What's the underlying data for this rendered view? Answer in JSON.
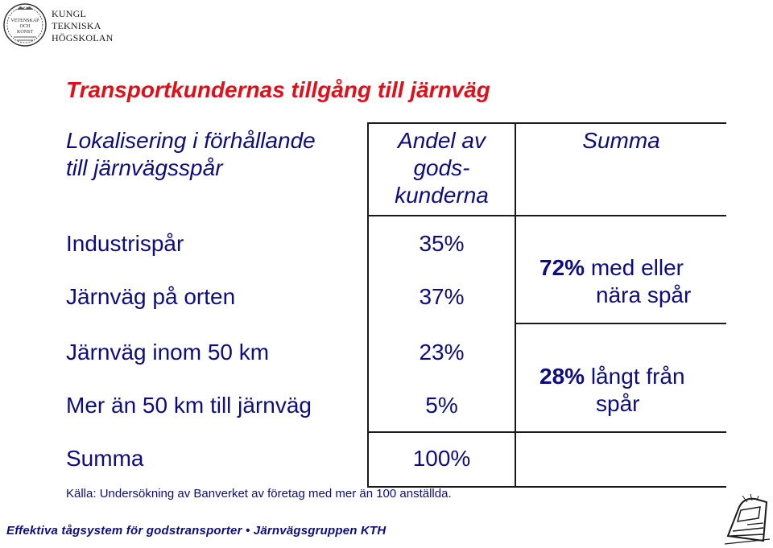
{
  "logo": {
    "seal_lines": [
      "VETENSKAP",
      "OCH",
      "KONST"
    ],
    "name_lines": [
      "KUNGL",
      "TEKNISKA",
      "HÖGSKOLAN"
    ]
  },
  "title": "Transportkundernas tillgång till järnväg",
  "table": {
    "headers": {
      "col1": [
        "Lokalisering i förhållande",
        "till järnvägsspår"
      ],
      "col2": [
        "Andel av",
        "gods-",
        "kunderna"
      ],
      "col3": "Summa"
    },
    "rows": [
      {
        "label": "Industrispår",
        "share": "35%"
      },
      {
        "label": "Järnväg på orten",
        "share": "37%"
      },
      {
        "label": "Järnväg inom 50 km",
        "share": "23%"
      },
      {
        "label": "Mer än 50 km till järnväg",
        "share": "5%"
      }
    ],
    "groups": [
      {
        "percent": "72%",
        "text1": "med eller",
        "text2": "nära spår"
      },
      {
        "percent": "28%",
        "text1": "långt från",
        "text2": "spår"
      }
    ],
    "total": {
      "label": "Summa",
      "share": "100%"
    }
  },
  "source": "Källa: Undersökning av Banverket av företag med mer än 100 anställda.",
  "footer": "Effektiva tågsystem för godstransporter • Järnvägsgruppen  KTH",
  "colors": {
    "title": "#e0101a",
    "text": "#0d0d80",
    "lines": "#1a1a1a"
  }
}
